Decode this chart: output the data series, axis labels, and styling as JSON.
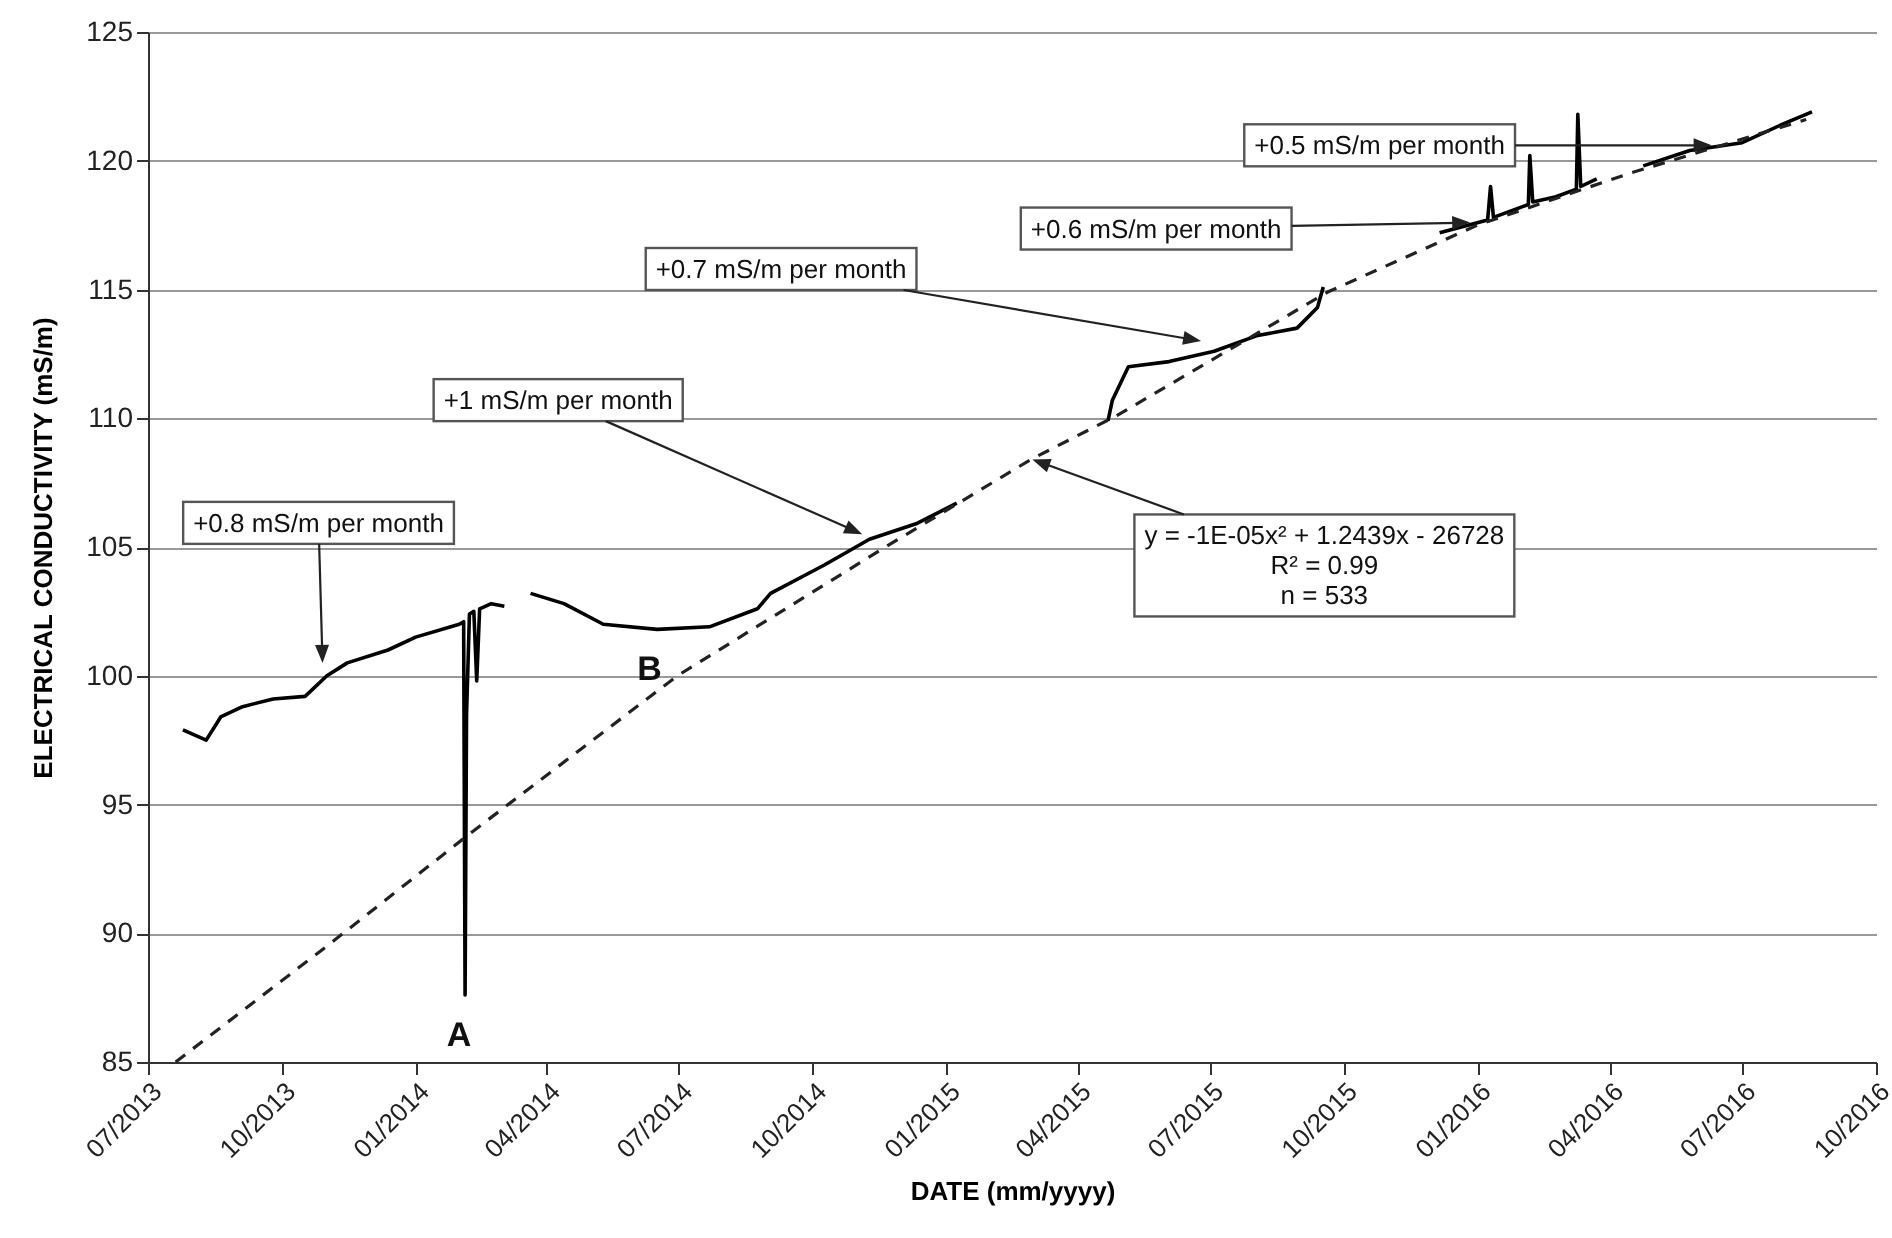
{
  "chart_data": {
    "type": "line",
    "xlabel": "DATE  (mm/yyyy)",
    "ylabel": "ELECTRICAL  CONDUCTIVITY  (mS/m)",
    "series": [
      {
        "color": "#000000",
        "x": [
          "2013-07-25",
          "2013-08-10",
          "2013-08-20",
          "2013-09-04",
          "2013-09-25",
          "2013-10-17",
          "2013-11-01",
          "2013-11-15",
          "2013-12-13",
          "2014-01-01",
          "2014-01-31",
          "2014-02-03",
          "2014-02-04",
          "2014-02-05",
          "2014-02-07",
          "2014-02-10",
          "2014-02-12",
          "2014-02-14",
          "2014-02-22",
          "2014-03-03",
          "2014-03-12",
          "2014-03-21",
          "2014-04-13",
          "2014-05-10",
          "2014-06-16",
          "2014-07-22",
          "2014-08-24",
          "2014-09-02",
          "2014-10-09",
          "2014-11-09",
          "2014-12-11",
          "2015-01-08",
          "2015-02-28",
          "2015-04-22",
          "2015-04-25",
          "2015-05-06",
          "2015-06-03",
          "2015-07-04",
          "2015-08-02",
          "2015-08-30",
          "2015-09-13",
          "2015-09-17",
          "2015-11-01",
          "2015-12-06",
          "2016-01-08",
          "2016-01-10",
          "2016-01-12",
          "2016-02-05",
          "2016-02-06",
          "2016-02-08",
          "2016-02-24",
          "2016-03-09",
          "2016-03-10",
          "2016-03-12",
          "2016-03-23",
          "2016-04-10",
          "2016-04-24",
          "2016-05-26",
          "2016-07-01",
          "2016-07-28",
          "2016-08-18"
        ],
        "values": [
          97.9,
          97.5,
          98.4,
          98.8,
          99.1,
          99.2,
          100.0,
          100.5,
          101.0,
          101.5,
          102.0,
          102.1,
          87.6,
          98.5,
          102.4,
          102.5,
          99.8,
          102.6,
          102.8,
          102.7,
          null,
          103.2,
          102.8,
          102.0,
          101.8,
          101.9,
          102.6,
          103.2,
          104.3,
          105.3,
          105.9,
          106.7,
          null,
          109.9,
          110.7,
          112.0,
          112.2,
          112.6,
          113.2,
          113.5,
          114.3,
          115.1,
          null,
          117.2,
          117.7,
          119.0,
          117.8,
          118.3,
          120.2,
          118.4,
          118.6,
          118.9,
          121.8,
          119.0,
          119.3,
          null,
          119.8,
          120.4,
          120.7,
          121.4,
          121.9
        ]
      },
      {
        "color": "#222222",
        "line_style": "dashed",
        "x": [
          "2013-07-20",
          "2013-11-01",
          "2014-02-08",
          "2014-06-30",
          "2014-11-20",
          "2015-02-28",
          "2015-04-28",
          "2015-09-20",
          "2016-01-01",
          "2016-04-14",
          "2016-08-14"
        ],
        "values": [
          85.0,
          89.5,
          93.9,
          100.0,
          105.0,
          108.4,
          110.1,
          114.9,
          117.5,
          119.5,
          121.6
        ]
      }
    ],
    "xlim": [
      "2013-07-01",
      "2016-10-01"
    ],
    "xticks": [
      {
        "value": "2013-07-01",
        "label": "07/2013"
      },
      {
        "value": "2013-10-01",
        "label": "10/2013"
      },
      {
        "value": "2014-01-01",
        "label": "01/2014"
      },
      {
        "value": "2014-04-01",
        "label": "04/2014"
      },
      {
        "value": "2014-07-01",
        "label": "07/2014"
      },
      {
        "value": "2014-10-01",
        "label": "10/2014"
      },
      {
        "value": "2015-01-01",
        "label": "01/2015"
      },
      {
        "value": "2015-04-01",
        "label": "04/2015"
      },
      {
        "value": "2015-07-01",
        "label": "07/2015"
      },
      {
        "value": "2015-10-01",
        "label": "10/2015"
      },
      {
        "value": "2016-01-01",
        "label": "01/2016"
      },
      {
        "value": "2016-04-01",
        "label": "04/2016"
      },
      {
        "value": "2016-07-01",
        "label": "07/2016"
      },
      {
        "value": "2016-10-01",
        "label": "10/2016"
      }
    ],
    "ylim": [
      85,
      125
    ],
    "yticks": [
      85,
      90,
      95,
      100,
      105,
      110,
      115,
      120,
      125
    ],
    "grid": "y",
    "annotations": [
      {
        "text": "+0.8 mS/m per month",
        "x": "2013-10-29",
        "y": 100.5
      },
      {
        "text": "+1 mS/m per month",
        "x": "2014-11-04",
        "y": 105.5
      },
      {
        "text": "+0.7 mS/m per month",
        "x": "2015-06-25",
        "y": 113.0
      },
      {
        "text": "+0.6 mS/m per month",
        "x": "2015-12-27",
        "y": 117.6
      },
      {
        "text": "+0.5 mS/m per month",
        "x": "2016-06-10",
        "y": 120.6
      },
      {
        "text": "y = -1E-05x² + 1.2439x - 26728\nR² = 0.99\nn = 533",
        "x": "2015-03-01",
        "y": 108.4
      },
      {
        "text": "A",
        "x": "2014-02-04",
        "y": 87.6
      },
      {
        "text": "B",
        "x": "2014-06-15",
        "y": 101.8
      }
    ]
  }
}
